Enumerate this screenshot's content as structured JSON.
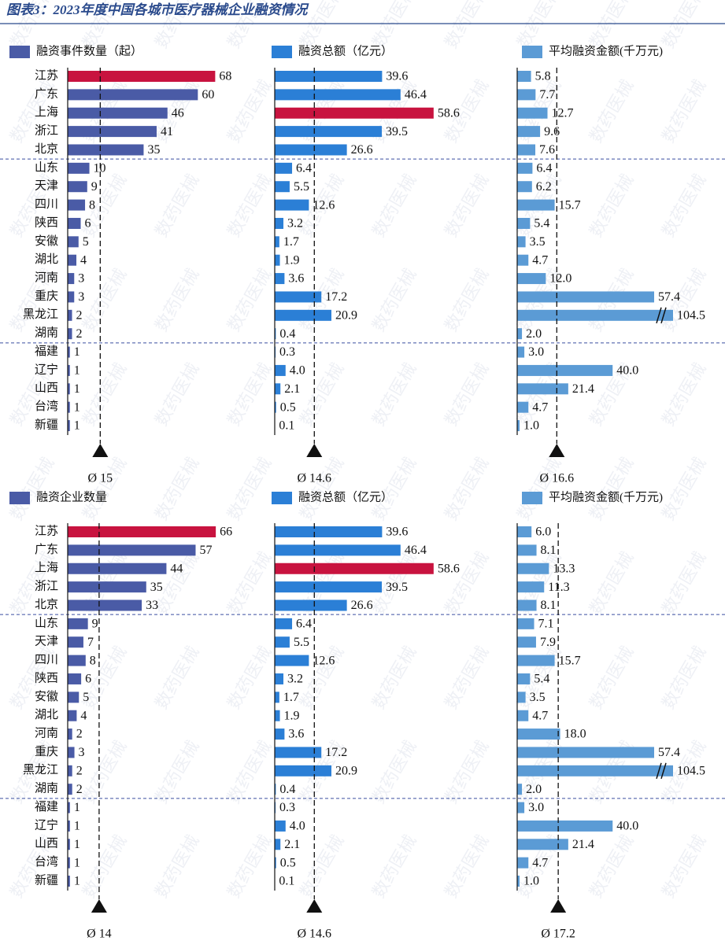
{
  "title": "图表3：2023年度中国各城市医疗器械企业融资情况",
  "watermark": "数药医械",
  "chart_data": [
    {
      "type": "bar",
      "orientation": "horizontal",
      "legend": "融资事件数量（起）",
      "color": "#4a5ba6",
      "highlight": {
        "index": 0,
        "color": "#c8133f"
      },
      "categories": [
        "江苏",
        "广东",
        "上海",
        "浙江",
        "北京",
        "山东",
        "天津",
        "四川",
        "陕西",
        "安徽",
        "湖北",
        "河南",
        "重庆",
        "黑龙江",
        "湖南",
        "福建",
        "辽宁",
        "山西",
        "台湾",
        "新疆"
      ],
      "values": [
        68,
        60,
        46,
        41,
        35,
        10,
        9,
        8,
        6,
        5,
        4,
        3,
        3,
        2,
        2,
        1,
        1,
        1,
        1,
        1
      ],
      "xlim": [
        0,
        90
      ],
      "average": {
        "value": 15,
        "label": "Ø 15"
      }
    },
    {
      "type": "bar",
      "orientation": "horizontal",
      "legend": "融资总额（亿元）",
      "color": "#2b7fd6",
      "highlight": {
        "index": 2,
        "color": "#c8133f"
      },
      "values": [
        39.6,
        46.4,
        58.6,
        39.5,
        26.6,
        6.4,
        5.5,
        12.6,
        3.2,
        1.7,
        1.9,
        3.6,
        17.2,
        20.9,
        0.4,
        0.3,
        4.0,
        2.1,
        0.5,
        0.1
      ],
      "value_labels": [
        "39.6",
        "46.4",
        "58.6",
        "39.5",
        "26.6",
        "6.4",
        "5.5",
        "12.6",
        "3.2",
        "1.7",
        "1.9",
        "3.6",
        "17.2",
        "20.9",
        "0.4",
        "0.3",
        "4.0",
        "2.1",
        "0.5",
        "0.1"
      ],
      "xlim": [
        0,
        72
      ],
      "average": {
        "value": 14.6,
        "label": "Ø 14.6"
      }
    },
    {
      "type": "bar",
      "orientation": "horizontal",
      "legend": "平均融资金额(千万元)",
      "color": "#5b9bd5",
      "axis_break": true,
      "values": [
        5.8,
        7.7,
        12.7,
        9.6,
        7.6,
        6.4,
        6.2,
        15.7,
        5.4,
        3.5,
        4.7,
        12.0,
        57.4,
        104.5,
        2.0,
        3.0,
        40.0,
        21.4,
        4.7,
        1.0
      ],
      "value_labels": [
        "5.8",
        "7.7",
        "12.7",
        "9.6",
        "7.6",
        "6.4",
        "6.2",
        "15.7",
        "5.4",
        "3.5",
        "4.7",
        "12.0",
        "57.4",
        "104.5",
        "2.0",
        "3.0",
        "40.0",
        "21.4",
        "4.7",
        "1.0"
      ],
      "xlim": [
        0,
        64
      ],
      "average": {
        "value": 16.6,
        "label": "Ø 16.6"
      }
    },
    {
      "type": "bar",
      "orientation": "horizontal",
      "legend": "融资企业数量",
      "color": "#4a5ba6",
      "highlight": {
        "index": 0,
        "color": "#c8133f"
      },
      "categories": [
        "江苏",
        "广东",
        "上海",
        "浙江",
        "北京",
        "山东",
        "天津",
        "四川",
        "陕西",
        "安徽",
        "湖北",
        "河南",
        "重庆",
        "黑龙江",
        "湖南",
        "福建",
        "辽宁",
        "山西",
        "台湾",
        "新疆"
      ],
      "values": [
        66,
        57,
        44,
        35,
        33,
        9,
        7,
        8,
        6,
        5,
        4,
        2,
        3,
        2,
        2,
        1,
        1,
        1,
        1,
        1
      ],
      "xlim": [
        0,
        87
      ],
      "average": {
        "value": 14,
        "label": "Ø 14"
      }
    },
    {
      "type": "bar",
      "orientation": "horizontal",
      "legend": "融资总额（亿元）",
      "color": "#2b7fd6",
      "highlight": {
        "index": 2,
        "color": "#c8133f"
      },
      "values": [
        39.6,
        46.4,
        58.6,
        39.5,
        26.6,
        6.4,
        5.5,
        12.6,
        3.2,
        1.7,
        1.9,
        3.6,
        17.2,
        20.9,
        0.4,
        0.3,
        4.0,
        2.1,
        0.5,
        0.1
      ],
      "value_labels": [
        "39.6",
        "46.4",
        "58.6",
        "39.5",
        "26.6",
        "6.4",
        "5.5",
        "12.6",
        "3.2",
        "1.7",
        "1.9",
        "3.6",
        "17.2",
        "20.9",
        "0.4",
        "0.3",
        "4.0",
        "2.1",
        "0.5",
        "0.1"
      ],
      "xlim": [
        0,
        72
      ],
      "average": {
        "value": 14.6,
        "label": "Ø 14.6"
      }
    },
    {
      "type": "bar",
      "orientation": "horizontal",
      "legend": "平均融资金额(千万元)",
      "color": "#5b9bd5",
      "axis_break": true,
      "values": [
        6.0,
        8.1,
        13.3,
        11.3,
        8.1,
        7.1,
        7.9,
        15.7,
        5.4,
        3.5,
        4.7,
        18.0,
        57.4,
        104.5,
        2.0,
        3.0,
        40.0,
        21.4,
        4.7,
        1.0
      ],
      "value_labels": [
        "6.0",
        "8.1",
        "13.3",
        "11.3",
        "8.1",
        "7.1",
        "7.9",
        "15.7",
        "5.4",
        "3.5",
        "4.7",
        "18.0",
        "57.4",
        "104.5",
        "2.0",
        "3.0",
        "40.0",
        "21.4",
        "4.7",
        "1.0"
      ],
      "xlim": [
        0,
        64
      ],
      "average": {
        "value": 17.2,
        "label": "Ø 17.2"
      }
    }
  ]
}
